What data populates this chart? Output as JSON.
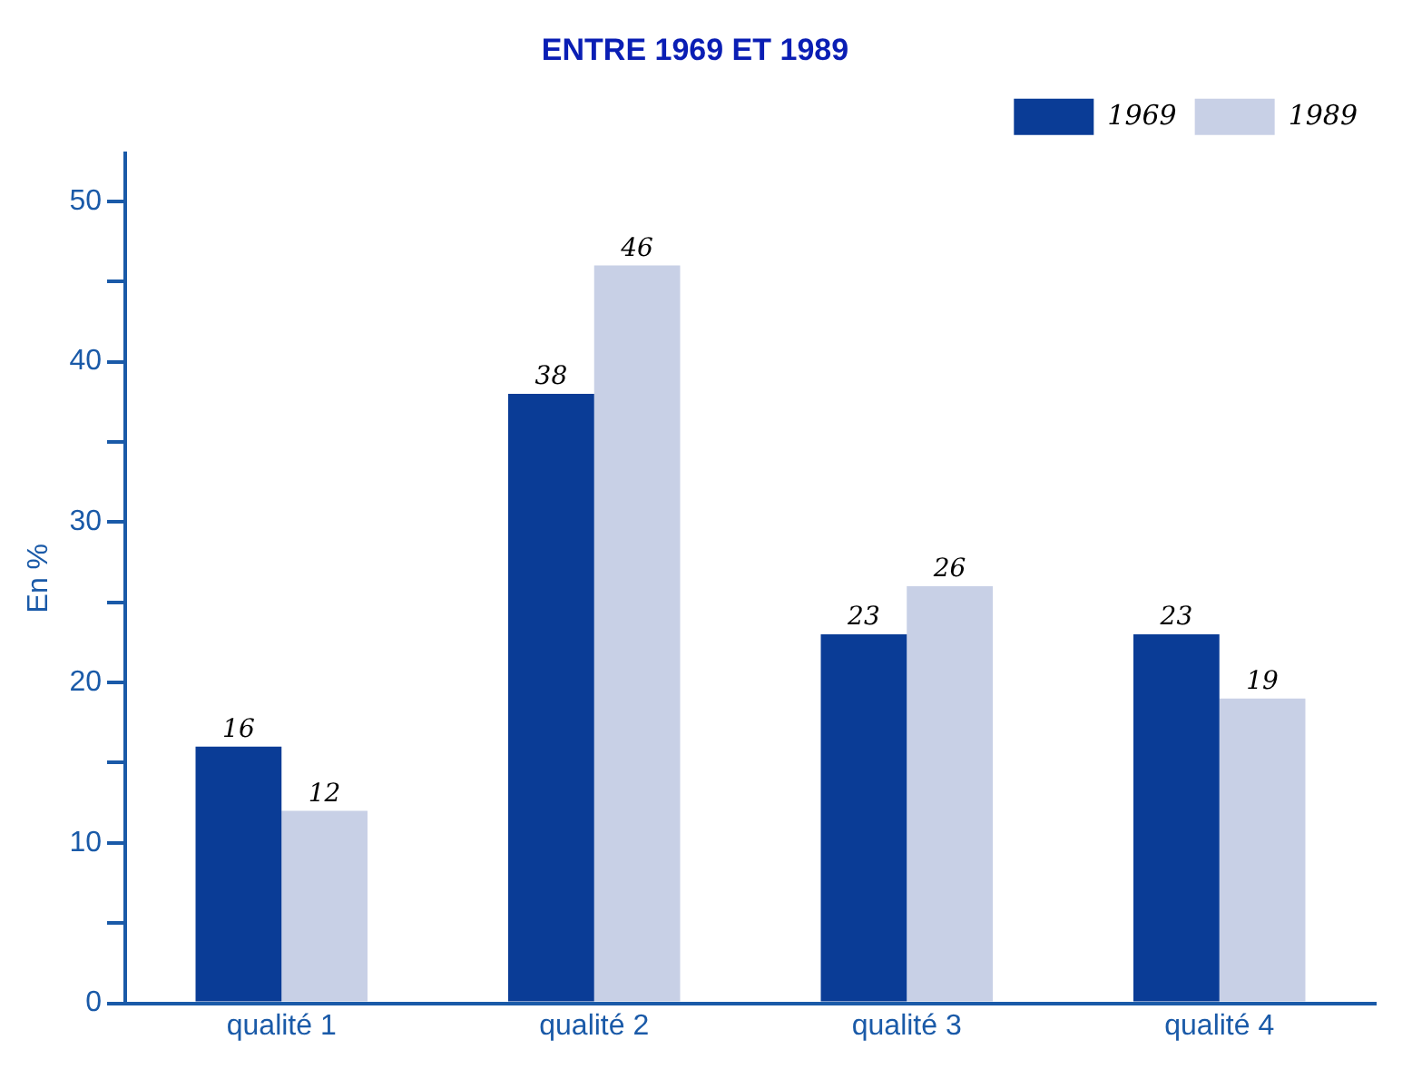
{
  "chart_data": {
    "type": "bar",
    "title": "ENTRE 1969 ET 1989",
    "ylabel": "En %",
    "categories": [
      "qualité 1",
      "qualité 2",
      "qualité 3",
      "qualité 4"
    ],
    "series": [
      {
        "name": "1969",
        "color": "#0a3c96",
        "values": [
          16,
          38,
          23,
          23
        ]
      },
      {
        "name": "1989",
        "color": "#c8d0e6",
        "values": [
          12,
          46,
          26,
          19
        ]
      }
    ],
    "ylim": [
      0,
      53
    ],
    "yticks": [
      0,
      {
        "value": 5,
        "label": null
      },
      10,
      {
        "value": 15,
        "label": null
      },
      20,
      {
        "value": 25,
        "label": null
      },
      30,
      {
        "value": 35,
        "label": null
      },
      40,
      {
        "value": 45,
        "label": null
      },
      50
    ],
    "grid": false,
    "legend": "top right",
    "data_labels": true
  }
}
